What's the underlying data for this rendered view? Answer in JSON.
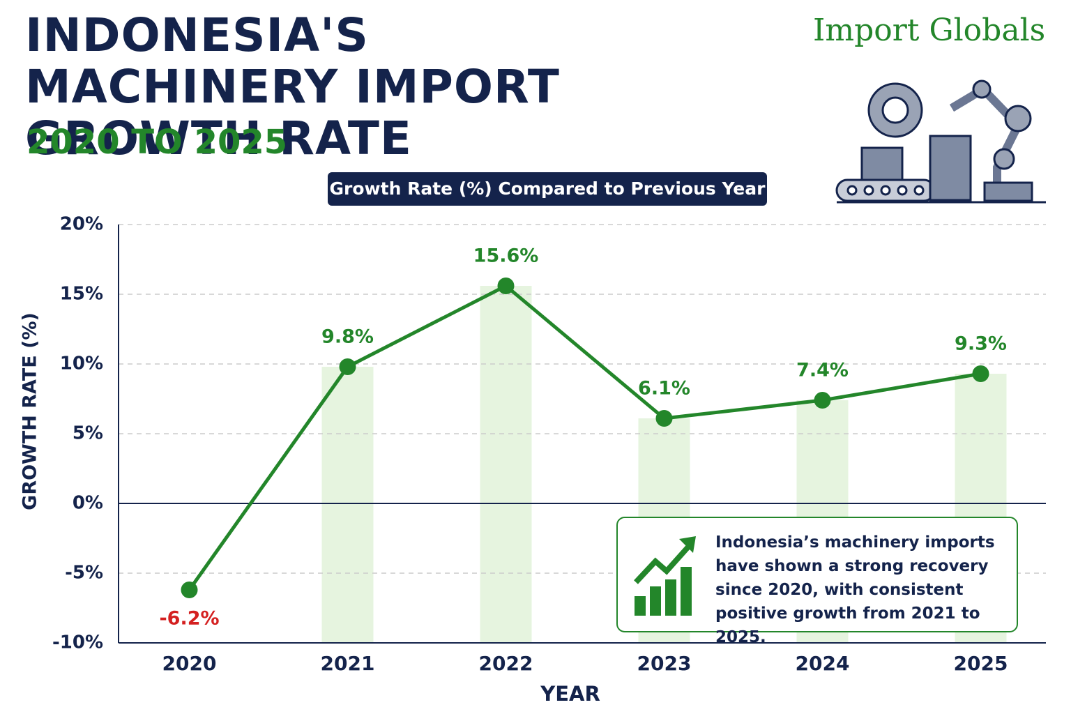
{
  "chart_data": {
    "type": "line",
    "title": "INDONESIA'S MACHINERY IMPORT GROWTH RATE",
    "subtitle": "2020 TO 2025",
    "chart_label": "Growth Rate (%) Compared to Previous Year",
    "brand": "Import Globals",
    "x_label": "YEAR",
    "y_label": "GROWTH RATE (%)",
    "categories": [
      "2020",
      "2021",
      "2022",
      "2023",
      "2024",
      "2025"
    ],
    "values": [
      -6.2,
      9.8,
      15.6,
      6.1,
      7.4,
      9.3
    ],
    "value_labels": [
      "-6.2%",
      "9.8%",
      "15.6%",
      "6.1%",
      "7.4%",
      "9.3%"
    ],
    "color": "#23862a",
    "negative_label_color": "#d42020",
    "bar_color": "#e6f4df",
    "ylim": [
      -10,
      20
    ],
    "yticks": [
      {
        "value": -10,
        "label": "-10%"
      },
      {
        "value": -5,
        "label": "-5%"
      },
      {
        "value": 0,
        "label": "0%"
      },
      {
        "value": 5,
        "label": "5%"
      },
      {
        "value": 10,
        "label": "10%"
      },
      {
        "value": 15,
        "label": "15%"
      },
      {
        "value": 20,
        "label": "20%"
      }
    ],
    "grid": true,
    "annotation": "Indonesia’s machinery imports have shown a strong recovery since 2020, with consistent positive growth from 2021 to 2025."
  }
}
